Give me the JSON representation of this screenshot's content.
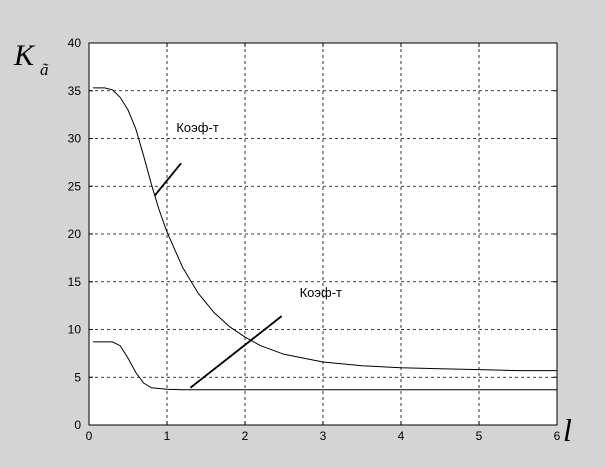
{
  "chart_data": {
    "type": "line",
    "ylabel_main": "K",
    "ylabel_sub": "ã",
    "xlabel": "l",
    "xlim": [
      0,
      6
    ],
    "ylim": [
      0,
      40
    ],
    "x_ticks": [
      "0",
      "1",
      "2",
      "3",
      "4",
      "5",
      "6"
    ],
    "y_ticks": [
      "0",
      "5",
      "10",
      "15",
      "20",
      "25",
      "30",
      "35",
      "40"
    ],
    "grid": true,
    "annotations": [
      "Коэф-т",
      "Коэф-т"
    ],
    "series": [
      {
        "x": [
          0.05,
          0.2,
          0.3,
          0.4,
          0.5,
          0.6,
          0.7,
          0.8,
          0.9,
          1.0,
          1.2,
          1.4,
          1.6,
          1.8,
          2.0,
          2.2,
          2.5,
          3.0,
          3.5,
          4.0,
          4.5,
          5.0,
          5.5,
          6.0
        ],
        "y": [
          35.3,
          35.3,
          35.1,
          34.3,
          33.0,
          31.0,
          28.2,
          25.2,
          22.5,
          20.2,
          16.5,
          13.8,
          11.8,
          10.3,
          9.2,
          8.3,
          7.4,
          6.6,
          6.2,
          6.0,
          5.9,
          5.8,
          5.7,
          5.7
        ]
      },
      {
        "x": [
          0.05,
          0.3,
          0.4,
          0.5,
          0.6,
          0.7,
          0.8,
          1.0,
          1.2,
          1.5,
          2.0,
          3.0,
          4.0,
          5.0,
          6.0
        ],
        "y": [
          8.7,
          8.7,
          8.3,
          7.0,
          5.5,
          4.4,
          3.9,
          3.75,
          3.7,
          3.7,
          3.7,
          3.7,
          3.7,
          3.7,
          3.7
        ]
      }
    ],
    "colors": {
      "panel_bg": "#d4d4d4",
      "plot_bg": "#ffffff",
      "grid": "#000000",
      "line": "#000000"
    }
  }
}
